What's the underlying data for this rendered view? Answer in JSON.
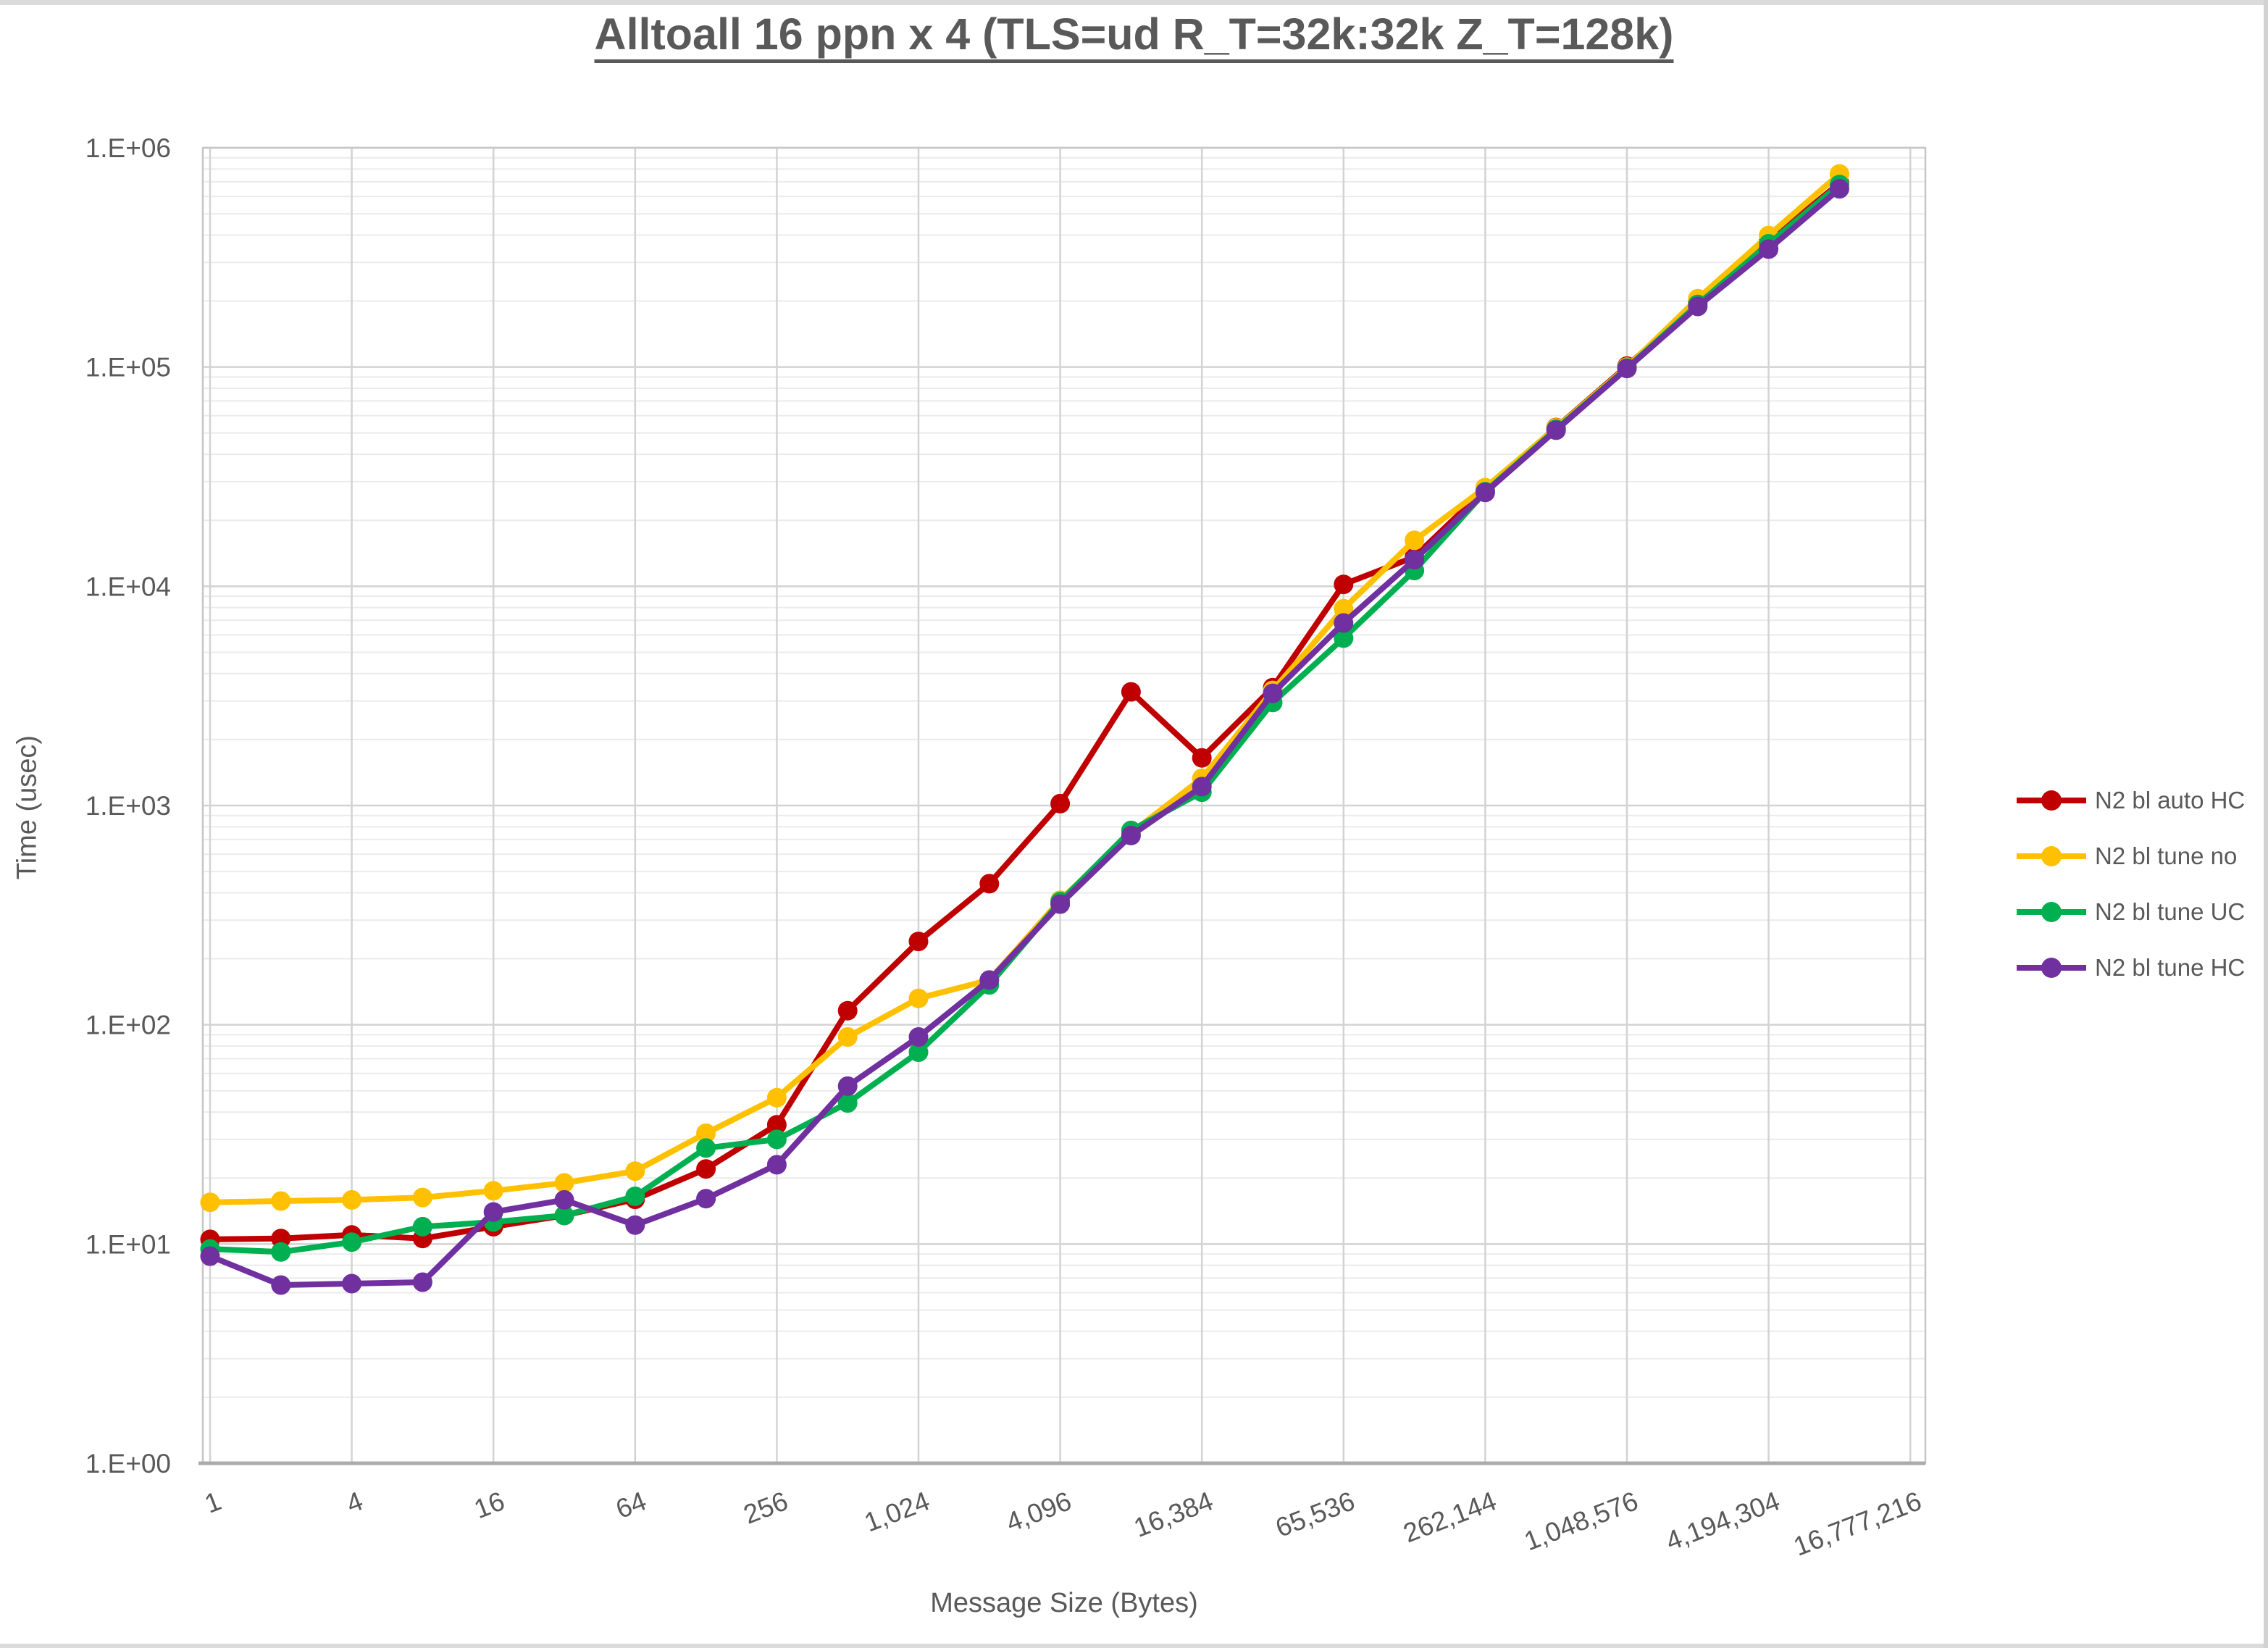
{
  "title": "Alltoall 16 ppn x 4 (TLS=ud R_T=32k:32k Z_T=128k)",
  "axes": {
    "y_title": "Time (usec)",
    "x_title": "Message Size (Bytes)",
    "y_tick_labels": [
      "1.E+00",
      "1.E+01",
      "1.E+02",
      "1.E+03",
      "1.E+04",
      "1.E+05",
      "1.E+06"
    ],
    "x_tick_labels": [
      "1",
      "4",
      "16",
      "64",
      "256",
      "1,024",
      "4,096",
      "16,384",
      "65,536",
      "262,144",
      "1,048,576",
      "4,194,304",
      "16,777,216"
    ]
  },
  "legend": [
    {
      "label": "N2 bl auto HC",
      "color": "#C00000"
    },
    {
      "label": "N2 bl tune no",
      "color": "#FFC000"
    },
    {
      "label": "N2 bl tune UC",
      "color": "#00B050"
    },
    {
      "label": "N2 bl tune HC",
      "color": "#7030A0"
    }
  ],
  "colors": {
    "text": "#595959",
    "major_grid": "#d3d3d3",
    "minor_grid": "#ebebeb",
    "plot_border": "#c6c6c6",
    "axis_line": "#ababab"
  },
  "chart_data": {
    "type": "line",
    "title": "Alltoall 16 ppn x 4 (TLS=ud R_T=32k:32k Z_T=128k)",
    "xlabel": "Message Size (Bytes)",
    "ylabel": "Time (usec)",
    "xscale": "log2-category",
    "yscale": "log10",
    "ylim": [
      1,
      1000000
    ],
    "x_axis_slots": 25,
    "label_every": 2,
    "grid": true,
    "legend_position": "right",
    "sizes": [
      1,
      2,
      4,
      8,
      16,
      32,
      64,
      128,
      256,
      512,
      1024,
      2048,
      4096,
      8192,
      16384,
      32768,
      65536,
      131072,
      262144,
      524288,
      1048576,
      2097152,
      4194304,
      8388608
    ],
    "series": [
      {
        "name": "N2 bl auto HC",
        "color": "#C00000",
        "values": [
          10.5,
          10.6,
          11,
          10.6,
          12,
          13.5,
          16,
          22,
          35,
          116,
          240,
          440,
          1020,
          3300,
          1650,
          3450,
          10200,
          13600,
          27800,
          53000,
          101000,
          197000,
          375000,
          690000
        ]
      },
      {
        "name": "N2 bl tune no",
        "color": "#FFC000",
        "values": [
          15.5,
          15.7,
          15.9,
          16.3,
          17.5,
          19,
          21.5,
          32,
          46.5,
          88,
          132,
          160,
          370,
          750,
          1330,
          3350,
          7900,
          16200,
          28200,
          52800,
          100000,
          205000,
          398000,
          760000
        ]
      },
      {
        "name": "N2 bl tune UC",
        "color": "#00B050",
        "values": [
          9.5,
          9.2,
          10.2,
          12,
          12.6,
          13.5,
          16.5,
          27.4,
          30,
          44,
          75,
          152,
          365,
          770,
          1150,
          2950,
          5800,
          11800,
          27000,
          52000,
          99000,
          193000,
          365000,
          680000
        ]
      },
      {
        "name": "N2 bl tune HC",
        "color": "#7030A0",
        "values": [
          8.8,
          6.5,
          6.6,
          6.7,
          14,
          15.9,
          12.2,
          16.1,
          23,
          52.5,
          88,
          160,
          355,
          730,
          1220,
          3250,
          6800,
          13200,
          26800,
          51500,
          98500,
          189000,
          345000,
          650000
        ]
      }
    ]
  }
}
